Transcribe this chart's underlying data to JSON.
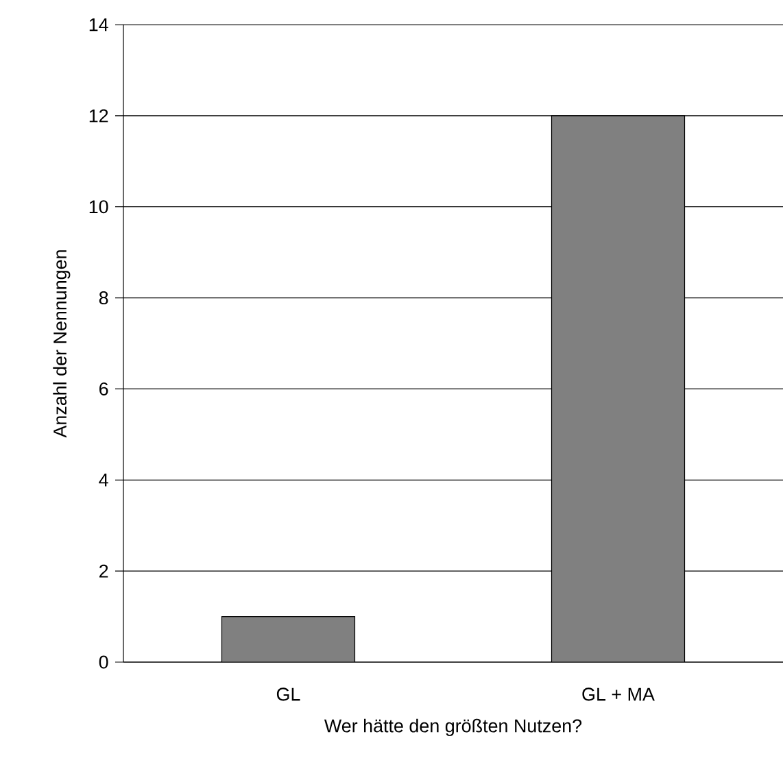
{
  "chart_data": {
    "type": "bar",
    "xlabel": "Wer hätte den größten Nutzen?",
    "ylabel": "Anzahl der Nennungen",
    "categories": [
      "GL",
      "GL + MA"
    ],
    "values": [
      1,
      12
    ],
    "color": "#808080",
    "ylim": [
      0,
      14
    ],
    "yticks": [
      0,
      2,
      4,
      6,
      8,
      10,
      12,
      14
    ],
    "grid": "y"
  }
}
